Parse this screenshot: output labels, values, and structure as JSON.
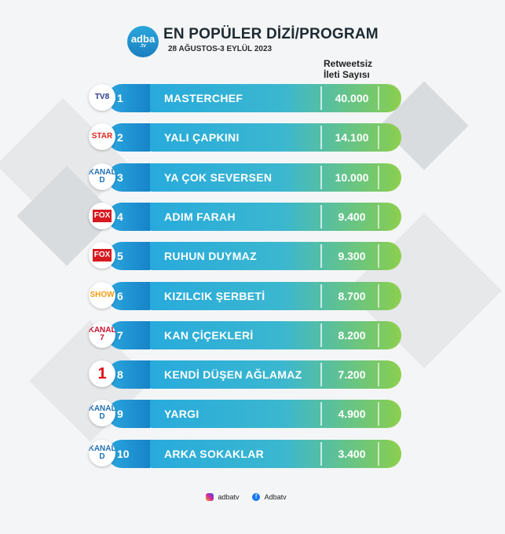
{
  "header": {
    "logo_text": "adba",
    "logo_sub": ".tv",
    "title": "EN POPÜLER DİZİ/PROGRAM",
    "subtitle": "28 AĞUSTOS-3 EYLÜL 2023",
    "column_header_line1": "Retweetsiz",
    "column_header_line2": "İleti Sayısı"
  },
  "rows": [
    {
      "rank": "1",
      "name": "MASTERCHEF",
      "value": "40.000",
      "channel": "TV8",
      "channel_color": "#2b3a8f"
    },
    {
      "rank": "2",
      "name": "YALI ÇAPKINI",
      "value": "14.100",
      "channel": "STAR",
      "channel_color": "#e2231a"
    },
    {
      "rank": "3",
      "name": "YA ÇOK SEVERSEN",
      "value": "10.000",
      "channel": "KANAL D",
      "channel_color": "#1f6fb5"
    },
    {
      "rank": "4",
      "name": "ADIM FARAH",
      "value": "9.400",
      "channel": "FOX",
      "channel_color": "#d71920"
    },
    {
      "rank": "5",
      "name": "RUHUN DUYMAZ",
      "value": "9.300",
      "channel": "FOX",
      "channel_color": "#d71920"
    },
    {
      "rank": "6",
      "name": "KIZILCIK ŞERBETİ",
      "value": "8.700",
      "channel": "SHOW",
      "channel_color": "#f39c12"
    },
    {
      "rank": "7",
      "name": "KAN ÇİÇEKLERİ",
      "value": "8.200",
      "channel": "KANAL 7",
      "channel_color": "#c8102e"
    },
    {
      "rank": "8",
      "name": "KENDİ DÜŞEN AĞLAMAZ",
      "value": "7.200",
      "channel": "1",
      "channel_color": "#e30613"
    },
    {
      "rank": "9",
      "name": "YARGI",
      "value": "4.900",
      "channel": "KANAL D",
      "channel_color": "#1f6fb5"
    },
    {
      "rank": "10",
      "name": "ARKA SOKAKLAR",
      "value": "3.400",
      "channel": "KANAL D",
      "channel_color": "#1f6fb5"
    }
  ],
  "footer": {
    "instagram": "adbatv",
    "facebook": "Adbatv"
  }
}
